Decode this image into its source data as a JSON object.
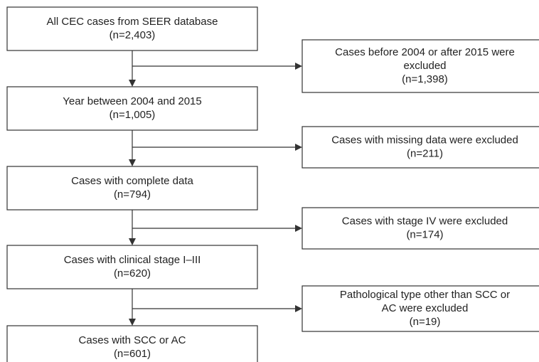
{
  "steps": [
    {
      "lines": [
        "All CEC cases from SEER database",
        "(n=2,403)"
      ]
    },
    {
      "lines": [
        "Year between 2004 and 2015",
        "(n=1,005)"
      ]
    },
    {
      "lines": [
        "Cases with complete data",
        "(n=794)"
      ]
    },
    {
      "lines": [
        "Cases with clinical stage I–III",
        "(n=620)"
      ]
    },
    {
      "lines": [
        "Cases with SCC or AC",
        "(n=601)"
      ]
    }
  ],
  "exclusions": [
    {
      "lines": [
        "Cases before 2004 or after 2015 were",
        "excluded",
        "(n=1,398)"
      ]
    },
    {
      "lines": [
        "Cases with missing data were excluded",
        "(n=211)"
      ]
    },
    {
      "lines": [
        "Cases with stage IV were excluded",
        "(n=174)"
      ]
    },
    {
      "lines": [
        "Pathological type other than SCC or",
        "AC  were excluded",
        "(n=19)"
      ]
    }
  ]
}
